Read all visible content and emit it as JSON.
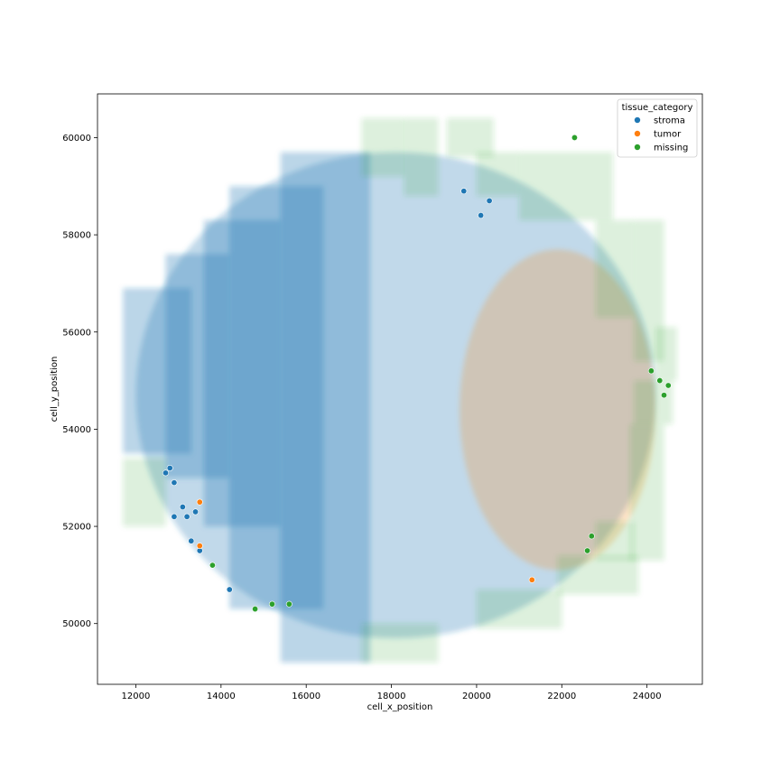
{
  "chart_data": {
    "type": "scatter",
    "title": "",
    "xlabel": "cell_x_position",
    "ylabel": "cell_y_position",
    "xlim": [
      11100,
      25300
    ],
    "ylim": [
      48750,
      60900
    ],
    "x_ticks": [
      12000,
      14000,
      16000,
      18000,
      20000,
      22000,
      24000
    ],
    "y_ticks": [
      50000,
      52000,
      54000,
      56000,
      58000,
      60000
    ],
    "x_tick_labels": [
      "12000",
      "14000",
      "16000",
      "18000",
      "20000",
      "22000",
      "24000"
    ],
    "y_tick_labels": [
      "50000",
      "52000",
      "54000",
      "56000",
      "58000",
      "60000"
    ],
    "grid": false,
    "legend": {
      "title": "tissue_category",
      "placement": "top-right",
      "entries": [
        {
          "label": "stroma",
          "color": "#1f77b4"
        },
        {
          "label": "tumor",
          "color": "#ff7f0e"
        },
        {
          "label": "missing",
          "color": "#2ca02c"
        }
      ]
    },
    "regions": [
      {
        "category": "stroma",
        "shape": "ellipse",
        "cx": 18100,
        "cy": 54700,
        "rx": 6100,
        "ry": 5000
      },
      {
        "category": "stroma",
        "shape": "rect",
        "x": [
          11700,
          13300
        ],
        "y": [
          53500,
          56900
        ]
      },
      {
        "category": "stroma",
        "shape": "rect",
        "x": [
          12700,
          14200
        ],
        "y": [
          53000,
          57600
        ]
      },
      {
        "category": "stroma",
        "shape": "rect",
        "x": [
          13600,
          15400
        ],
        "y": [
          52000,
          58300
        ]
      },
      {
        "category": "stroma",
        "shape": "rect",
        "x": [
          14200,
          16400
        ],
        "y": [
          50300,
          59000
        ]
      },
      {
        "category": "stroma",
        "shape": "rect",
        "x": [
          15400,
          17500
        ],
        "y": [
          49200,
          59700
        ]
      },
      {
        "category": "tumor",
        "shape": "ellipse",
        "cx": 21900,
        "cy": 54400,
        "rx": 2300,
        "ry": 3300
      },
      {
        "category": "missing",
        "shape": "rect",
        "x": [
          11700,
          12700
        ],
        "y": [
          52000,
          53400
        ]
      },
      {
        "category": "missing",
        "shape": "rect",
        "x": [
          17300,
          18300
        ],
        "y": [
          59200,
          60400
        ]
      },
      {
        "category": "missing",
        "shape": "rect",
        "x": [
          18300,
          19100
        ],
        "y": [
          58800,
          60400
        ]
      },
      {
        "category": "missing",
        "shape": "rect",
        "x": [
          19300,
          20400
        ],
        "y": [
          59600,
          60400
        ]
      },
      {
        "category": "missing",
        "shape": "rect",
        "x": [
          20000,
          21000
        ],
        "y": [
          58800,
          59700
        ]
      },
      {
        "category": "missing",
        "shape": "rect",
        "x": [
          21000,
          23200
        ],
        "y": [
          58300,
          59700
        ]
      },
      {
        "category": "missing",
        "shape": "rect",
        "x": [
          22800,
          23700
        ],
        "y": [
          56300,
          58300
        ]
      },
      {
        "category": "missing",
        "shape": "rect",
        "x": [
          23700,
          24400
        ],
        "y": [
          55400,
          58300
        ]
      },
      {
        "category": "missing",
        "shape": "rect",
        "x": [
          24200,
          24700
        ],
        "y": [
          55000,
          56100
        ]
      },
      {
        "category": "missing",
        "shape": "rect",
        "x": [
          23700,
          24600
        ],
        "y": [
          54100,
          55000
        ]
      },
      {
        "category": "missing",
        "shape": "rect",
        "x": [
          23600,
          24400
        ],
        "y": [
          51300,
          54100
        ]
      },
      {
        "category": "missing",
        "shape": "rect",
        "x": [
          22800,
          23700
        ],
        "y": [
          51300,
          52100
        ]
      },
      {
        "category": "missing",
        "shape": "rect",
        "x": [
          21900,
          23800
        ],
        "y": [
          50600,
          51400
        ]
      },
      {
        "category": "missing",
        "shape": "rect",
        "x": [
          20000,
          22000
        ],
        "y": [
          49900,
          50700
        ]
      },
      {
        "category": "missing",
        "shape": "rect",
        "x": [
          17300,
          19100
        ],
        "y": [
          49200,
          50000
        ]
      }
    ],
    "points": [
      {
        "x": 12800,
        "y": 53200,
        "category": "stroma"
      },
      {
        "x": 12700,
        "y": 53100,
        "category": "stroma"
      },
      {
        "x": 12900,
        "y": 52900,
        "category": "stroma"
      },
      {
        "x": 13100,
        "y": 52400,
        "category": "stroma"
      },
      {
        "x": 13200,
        "y": 52200,
        "category": "stroma"
      },
      {
        "x": 13400,
        "y": 52300,
        "category": "stroma"
      },
      {
        "x": 13300,
        "y": 51700,
        "category": "stroma"
      },
      {
        "x": 13500,
        "y": 51500,
        "category": "stroma"
      },
      {
        "x": 12900,
        "y": 52200,
        "category": "stroma"
      },
      {
        "x": 14200,
        "y": 50700,
        "category": "stroma"
      },
      {
        "x": 13500,
        "y": 52500,
        "category": "tumor"
      },
      {
        "x": 13500,
        "y": 51600,
        "category": "tumor"
      },
      {
        "x": 13800,
        "y": 51200,
        "category": "missing"
      },
      {
        "x": 14800,
        "y": 50300,
        "category": "missing"
      },
      {
        "x": 15200,
        "y": 50400,
        "category": "missing"
      },
      {
        "x": 15600,
        "y": 50400,
        "category": "missing"
      },
      {
        "x": 21300,
        "y": 50900,
        "category": "tumor"
      },
      {
        "x": 22300,
        "y": 60000,
        "category": "missing"
      },
      {
        "x": 20300,
        "y": 58700,
        "category": "stroma"
      },
      {
        "x": 20100,
        "y": 58400,
        "category": "stroma"
      },
      {
        "x": 19700,
        "y": 58900,
        "category": "stroma"
      },
      {
        "x": 22700,
        "y": 51800,
        "category": "missing"
      },
      {
        "x": 22600,
        "y": 51500,
        "category": "missing"
      },
      {
        "x": 24100,
        "y": 55200,
        "category": "missing"
      },
      {
        "x": 24300,
        "y": 55000,
        "category": "missing"
      },
      {
        "x": 24500,
        "y": 54900,
        "category": "missing"
      },
      {
        "x": 24400,
        "y": 54700,
        "category": "missing"
      }
    ]
  }
}
